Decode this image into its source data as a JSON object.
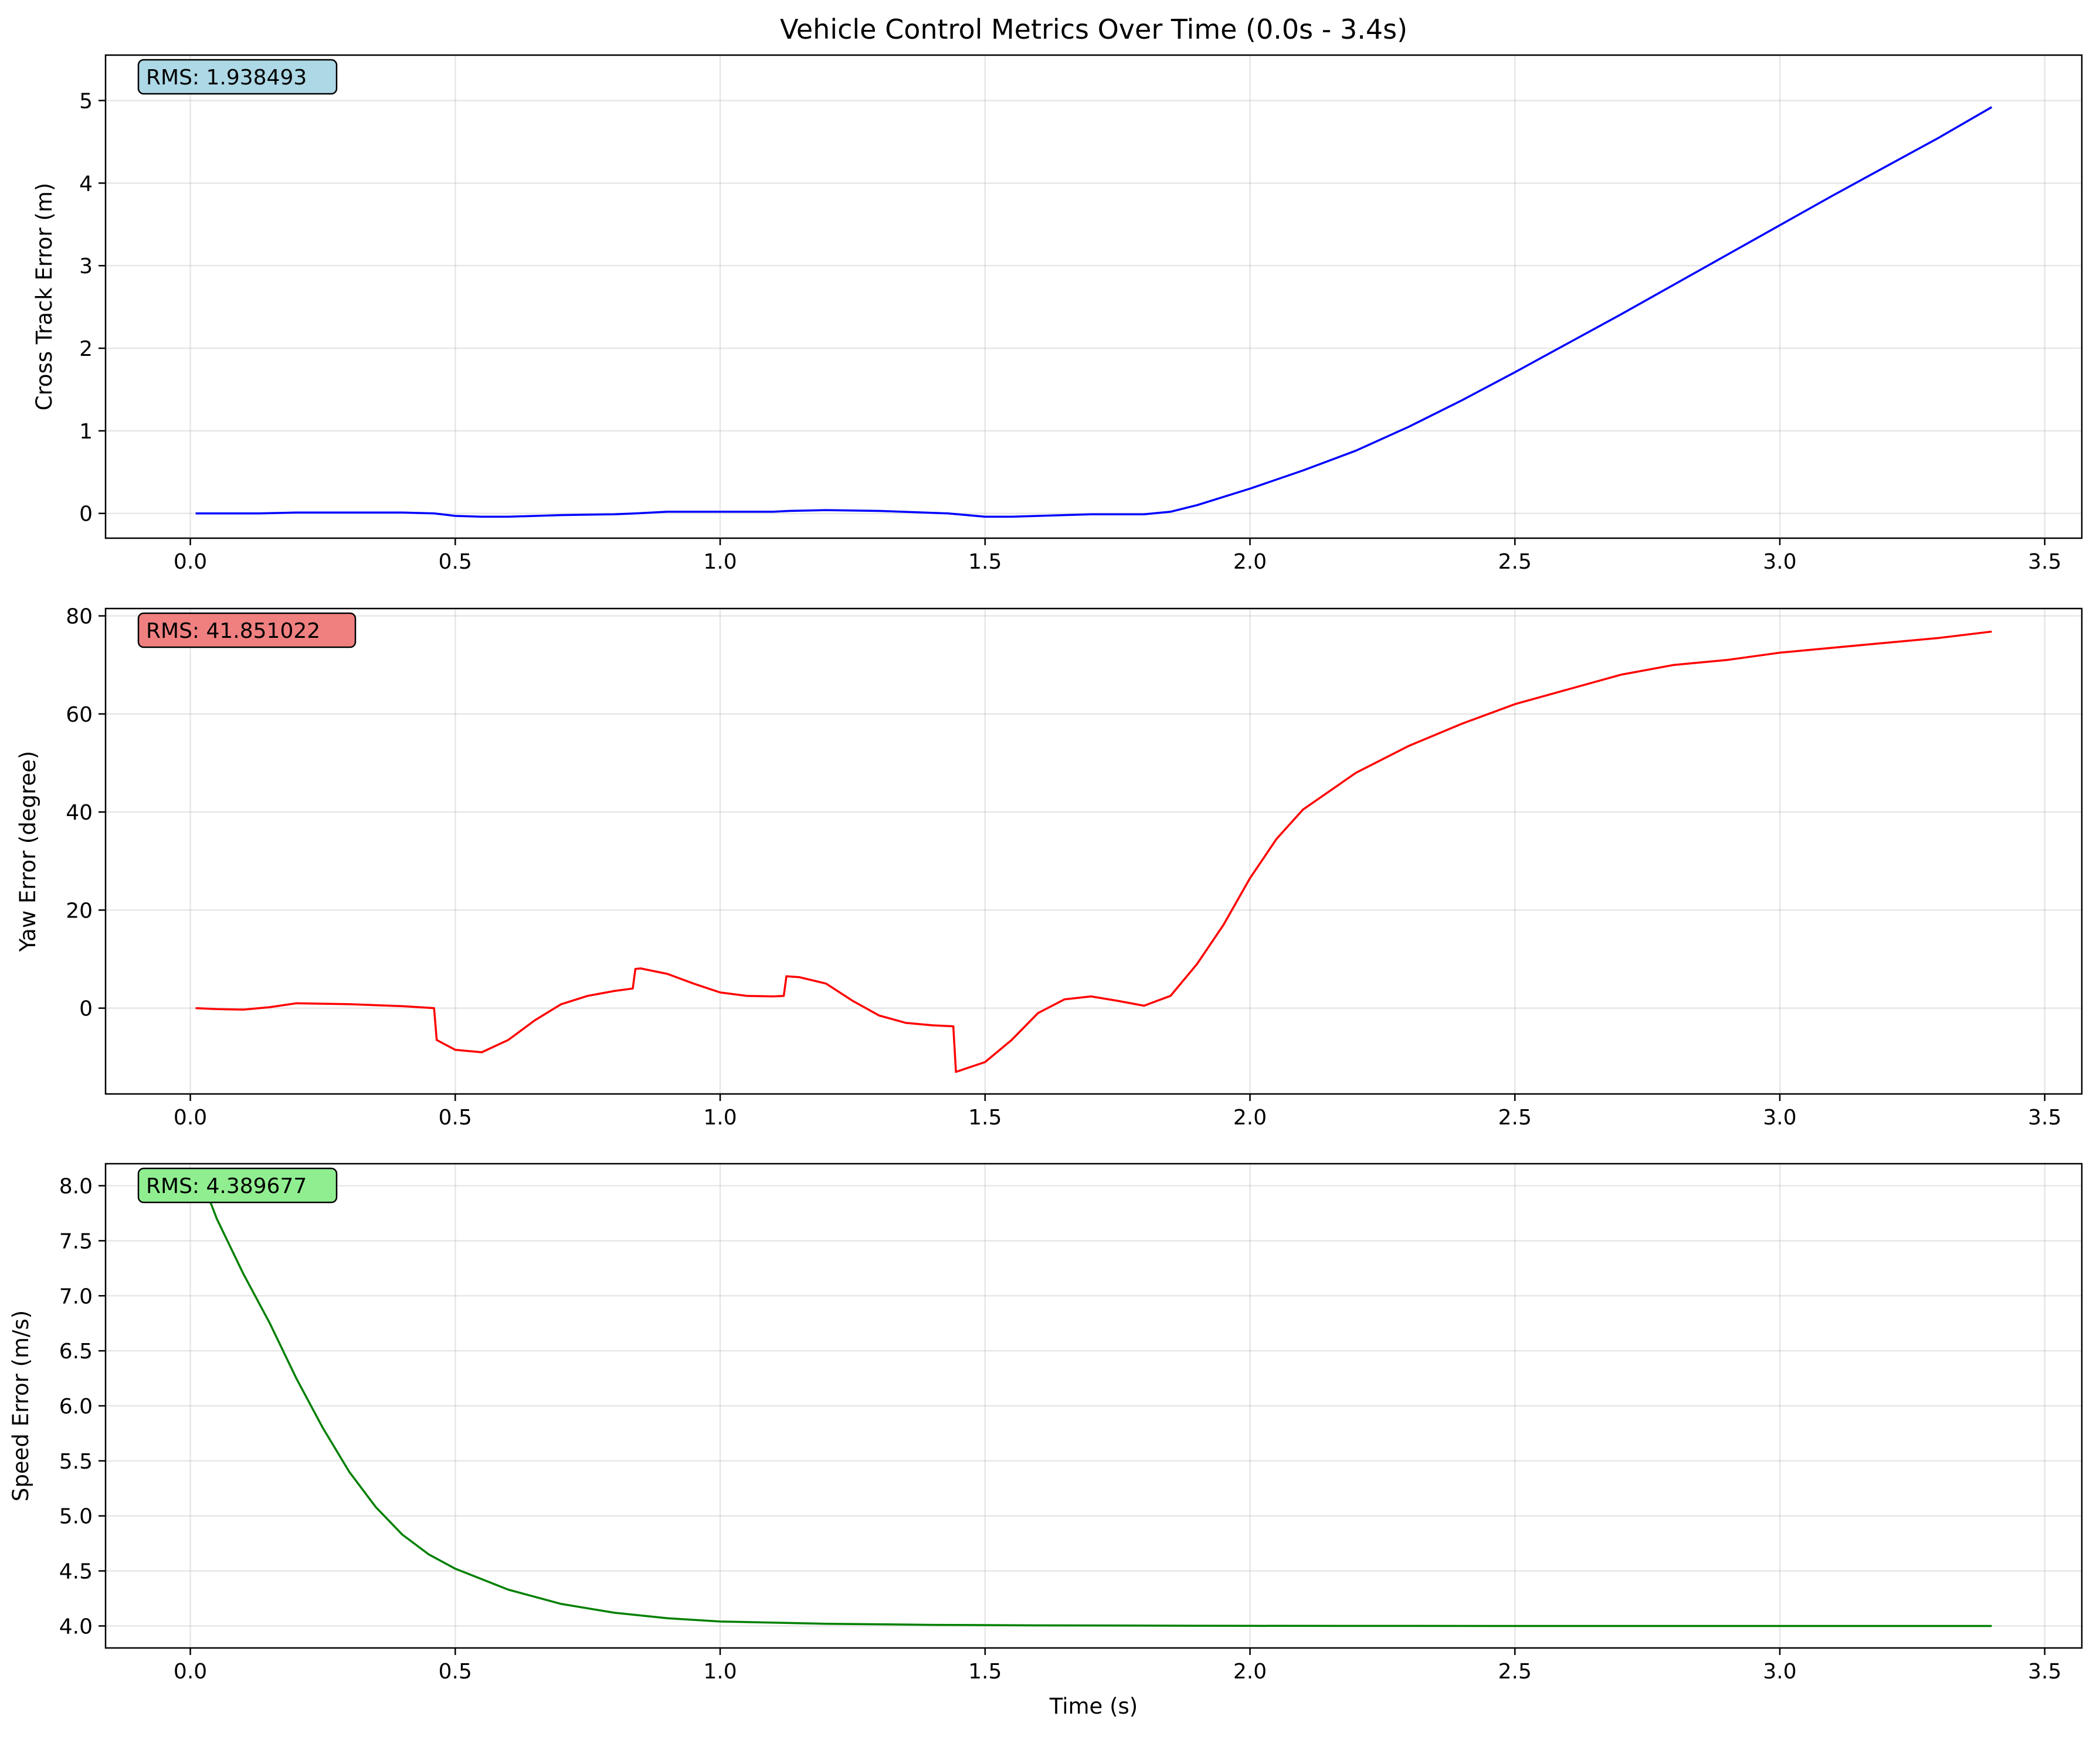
{
  "chart_data": [
    {
      "type": "line",
      "title": "Vehicle Control Metrics Over Time (0.0s - 3.4s)",
      "xlabel": "",
      "ylabel": "Cross Track Error (m)",
      "xlim": [
        -0.16,
        3.57
      ],
      "ylim": [
        -0.3,
        5.55
      ],
      "xticks": [
        0.0,
        0.5,
        1.0,
        1.5,
        2.0,
        2.5,
        3.0,
        3.5
      ],
      "xtick_labels": [
        "0.0",
        "0.5",
        "1.0",
        "1.5",
        "2.0",
        "2.5",
        "3.0",
        "3.5"
      ],
      "yticks": [
        0,
        1,
        2,
        3,
        4,
        5
      ],
      "ytick_labels": [
        "0",
        "1",
        "2",
        "3",
        "4",
        "5"
      ],
      "grid": true,
      "color": "#0000ff",
      "annotation": {
        "text": "RMS: 1.938493",
        "box_color": "#add8e6"
      },
      "series": [
        {
          "name": "Cross Track Error",
          "x": [
            0.01,
            0.13,
            0.2,
            0.3,
            0.4,
            0.46,
            0.5,
            0.55,
            0.6,
            0.7,
            0.8,
            0.84,
            0.9,
            1.0,
            1.1,
            1.13,
            1.2,
            1.3,
            1.43,
            1.5,
            1.55,
            1.6,
            1.7,
            1.8,
            1.85,
            1.9,
            1.95,
            2.0,
            2.1,
            2.2,
            2.3,
            2.4,
            2.5,
            2.6,
            2.7,
            2.8,
            2.9,
            3.0,
            3.1,
            3.2,
            3.3,
            3.4
          ],
          "y": [
            0.0,
            0.0,
            0.01,
            0.01,
            0.01,
            0.0,
            -0.03,
            -0.04,
            -0.04,
            -0.02,
            -0.01,
            0.0,
            0.02,
            0.02,
            0.02,
            0.03,
            0.04,
            0.03,
            0.0,
            -0.04,
            -0.04,
            -0.03,
            -0.01,
            -0.01,
            0.02,
            0.1,
            0.2,
            0.3,
            0.52,
            0.76,
            1.05,
            1.37,
            1.71,
            2.06,
            2.41,
            2.77,
            3.13,
            3.49,
            3.85,
            4.2,
            4.55,
            4.92
          ]
        }
      ]
    },
    {
      "type": "line",
      "xlabel": "",
      "ylabel": "Yaw Error (degree)",
      "xlim": [
        -0.16,
        3.57
      ],
      "ylim": [
        -17.5,
        81.5
      ],
      "xticks": [
        0.0,
        0.5,
        1.0,
        1.5,
        2.0,
        2.5,
        3.0,
        3.5
      ],
      "xtick_labels": [
        "0.0",
        "0.5",
        "1.0",
        "1.5",
        "2.0",
        "2.5",
        "3.0",
        "3.5"
      ],
      "yticks": [
        0,
        20,
        40,
        60,
        80
      ],
      "ytick_labels": [
        "0",
        "20",
        "40",
        "60",
        "80"
      ],
      "grid": true,
      "color": "#ff0000",
      "annotation": {
        "text": "RMS: 41.851022",
        "box_color": "#f08080"
      },
      "series": [
        {
          "name": "Yaw Error",
          "x": [
            0.01,
            0.05,
            0.1,
            0.15,
            0.2,
            0.3,
            0.4,
            0.46,
            0.465,
            0.5,
            0.55,
            0.6,
            0.65,
            0.7,
            0.75,
            0.8,
            0.835,
            0.84,
            0.85,
            0.9,
            0.95,
            1.0,
            1.05,
            1.1,
            1.12,
            1.125,
            1.15,
            1.2,
            1.25,
            1.3,
            1.35,
            1.4,
            1.44,
            1.445,
            1.5,
            1.55,
            1.6,
            1.65,
            1.7,
            1.75,
            1.8,
            1.85,
            1.9,
            1.95,
            2.0,
            2.05,
            2.1,
            2.2,
            2.3,
            2.4,
            2.5,
            2.6,
            2.7,
            2.8,
            2.9,
            3.0,
            3.1,
            3.2,
            3.3,
            3.4
          ],
          "y": [
            0.0,
            -0.2,
            -0.3,
            0.2,
            1.0,
            0.8,
            0.4,
            0.0,
            -6.5,
            -8.5,
            -9.0,
            -6.5,
            -2.5,
            0.8,
            2.5,
            3.5,
            4.0,
            8.0,
            8.1,
            7.0,
            5.0,
            3.2,
            2.5,
            2.4,
            2.5,
            6.5,
            6.3,
            5.0,
            1.5,
            -1.5,
            -3.0,
            -3.5,
            -3.7,
            -13.0,
            -11.0,
            -6.5,
            -1.0,
            1.8,
            2.4,
            1.5,
            0.5,
            2.5,
            9.0,
            17.0,
            26.5,
            34.5,
            40.5,
            48.0,
            53.5,
            58.0,
            62.0,
            65.0,
            68.0,
            70.0,
            71.0,
            72.5,
            73.5,
            74.5,
            75.5,
            76.8
          ]
        }
      ]
    },
    {
      "type": "line",
      "xlabel": "Time (s)",
      "ylabel": "Speed Error (m/s)",
      "xlim": [
        -0.16,
        3.57
      ],
      "ylim": [
        3.8,
        8.2
      ],
      "xticks": [
        0.0,
        0.5,
        1.0,
        1.5,
        2.0,
        2.5,
        3.0,
        3.5
      ],
      "xtick_labels": [
        "0.0",
        "0.5",
        "1.0",
        "1.5",
        "2.0",
        "2.5",
        "3.0",
        "3.5"
      ],
      "yticks": [
        4.0,
        4.5,
        5.0,
        5.5,
        6.0,
        6.5,
        7.0,
        7.5,
        8.0
      ],
      "ytick_labels": [
        "4.0",
        "4.5",
        "5.0",
        "5.5",
        "6.0",
        "6.5",
        "7.0",
        "7.5",
        "8.0"
      ],
      "grid": true,
      "color": "#008000",
      "annotation": {
        "text": "RMS: 4.389677",
        "box_color": "#90ee90"
      },
      "series": [
        {
          "name": "Speed Error",
          "x": [
            0.01,
            0.03,
            0.05,
            0.1,
            0.15,
            0.2,
            0.25,
            0.3,
            0.35,
            0.4,
            0.45,
            0.5,
            0.6,
            0.7,
            0.8,
            0.9,
            1.0,
            1.2,
            1.4,
            1.6,
            1.8,
            2.0,
            2.5,
            3.0,
            3.4
          ],
          "y": [
            8.0,
            7.95,
            7.7,
            7.2,
            6.75,
            6.25,
            5.8,
            5.4,
            5.08,
            4.83,
            4.65,
            4.52,
            4.33,
            4.2,
            4.12,
            4.07,
            4.04,
            4.02,
            4.01,
            4.005,
            4.003,
            4.001,
            4.0,
            4.0,
            4.0
          ]
        }
      ]
    }
  ]
}
